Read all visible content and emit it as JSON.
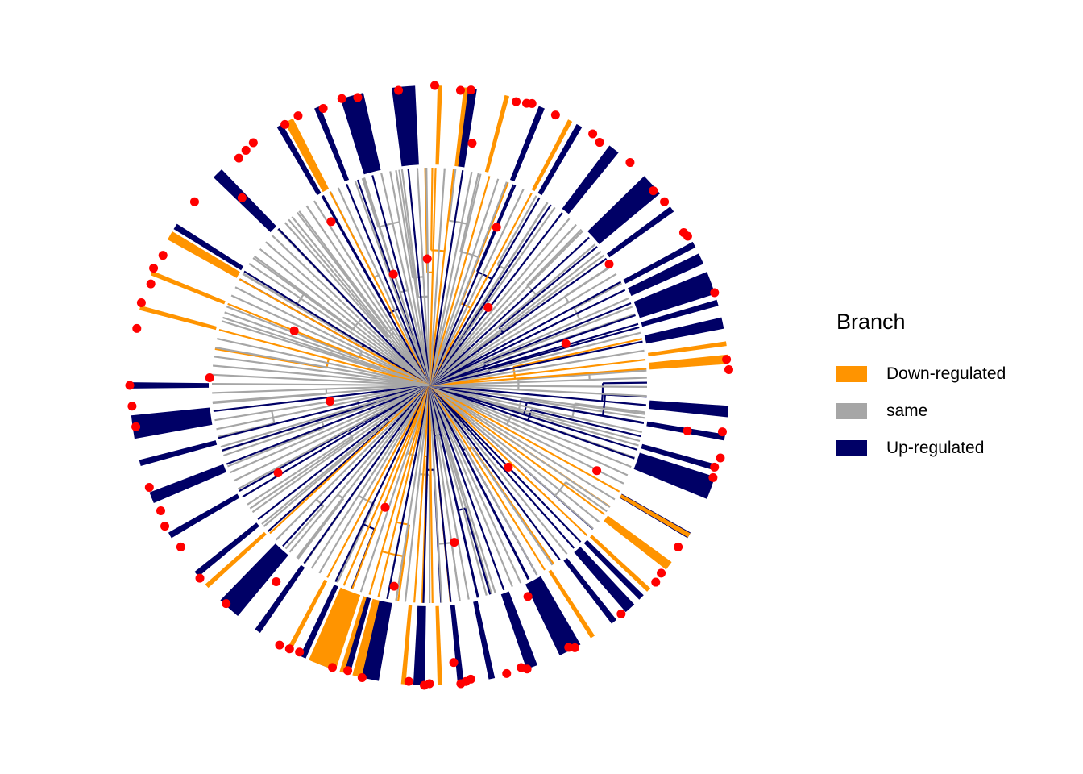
{
  "chart_data": {
    "type": "circular-dendrogram",
    "legend": {
      "title": "Branch",
      "position": "right",
      "items": [
        {
          "label": "Down-regulated",
          "color": "#FF9400"
        },
        {
          "label": "same",
          "color": "#A6A6A6"
        },
        {
          "label": "Up-regulated",
          "color": "#000066"
        }
      ]
    },
    "colors": {
      "down": "#FF9400",
      "same": "#A6A6A6",
      "up": "#000066",
      "tip_point": "#FF0000"
    },
    "up_regulated_sector_angles_deg": [
      -172,
      -180,
      148,
      135,
      120,
      95,
      82,
      68,
      60,
      52,
      42,
      36,
      -5,
      -10,
      -16,
      -20,
      -30,
      -45,
      -48,
      -52,
      -62,
      -70,
      -78,
      -84,
      -92,
      -102,
      -106,
      -111,
      -115,
      -125,
      -132,
      -141,
      -150,
      -158,
      -165,
      20,
      25,
      28,
      16,
      12,
      105,
      112
    ],
    "down_regulated_sector_angles_deg": [
      -111,
      -113,
      -88,
      75,
      118,
      83,
      62,
      -30,
      -37,
      -43,
      -57,
      -95,
      -104,
      -107,
      -118,
      -138,
      150,
      158,
      165,
      8,
      5,
      88
    ],
    "tip_angles_deg": [
      96,
      91,
      89,
      84,
      82,
      80,
      73,
      71,
      70,
      67,
      65,
      57,
      55,
      53,
      48,
      41,
      38,
      34,
      31,
      30,
      18,
      17,
      5,
      3,
      -9,
      -10,
      -14,
      -16,
      -18,
      -27,
      -33,
      -39,
      -41,
      -46,
      -50,
      -61,
      -62,
      -65,
      -71,
      -72,
      -75,
      -81,
      -82,
      -83,
      -84,
      -85,
      -90,
      -91,
      -94,
      -100,
      -103,
      -106,
      -109,
      -110,
      -116,
      -118,
      -120,
      -128,
      -133,
      -140,
      -147,
      -150,
      -152,
      -155,
      -160,
      -171,
      -172,
      -176,
      -180,
      178,
      169,
      164,
      160,
      158,
      157,
      154,
      142,
      135,
      130,
      128,
      126,
      121,
      119,
      116,
      111,
      108,
      107,
      104
    ]
  }
}
